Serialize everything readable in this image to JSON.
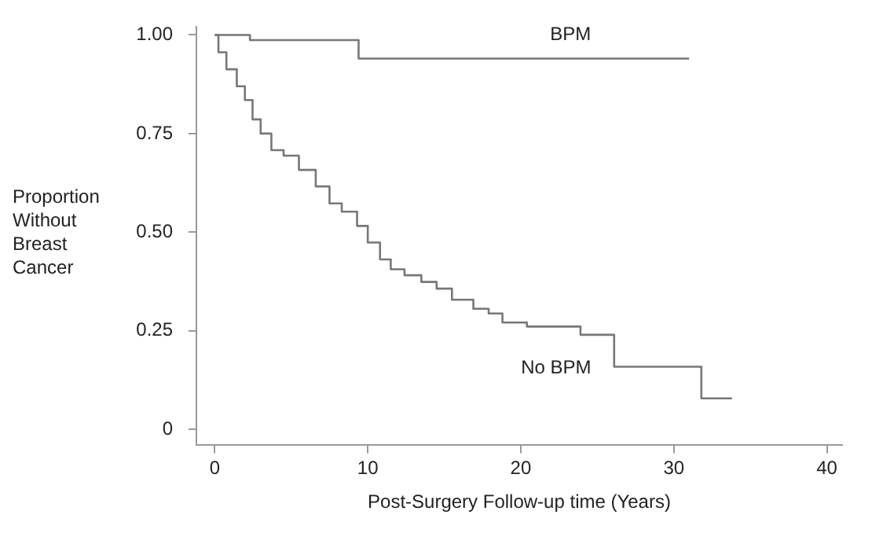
{
  "chart_data": {
    "type": "step",
    "xlabel": "Post-Surgery Follow-up time (Years)",
    "ylabel": "Proportion Without Breast Cancer",
    "xlim": [
      -1.2,
      41
    ],
    "xticks": [
      0,
      10,
      20,
      30,
      40
    ],
    "ylim": [
      -0.04,
      1.02
    ],
    "yticks": [
      {
        "value": 0,
        "label": "0"
      },
      {
        "value": 0.25,
        "label": "0.25"
      },
      {
        "value": 0.5,
        "label": "0.50"
      },
      {
        "value": 0.75,
        "label": "0.75"
      },
      {
        "value": 1,
        "label": "1.00"
      }
    ],
    "grid": false,
    "legend": false,
    "series": [
      {
        "name": "BPM",
        "color": "#777777",
        "x": [
          0,
          2.3,
          9.4,
          31
        ],
        "values": [
          1,
          0.987,
          0.94,
          0.94
        ]
      },
      {
        "name": "No BPM",
        "color": "#777777",
        "x": [
          0,
          0.24,
          0.76,
          1.44,
          1.97,
          2.47,
          3.0,
          3.7,
          4.5,
          5.5,
          6.6,
          7.5,
          8.3,
          9.3,
          10.0,
          10.8,
          11.5,
          12.4,
          13.5,
          14.5,
          15.5,
          16.9,
          17.9,
          18.8,
          20.4,
          23.9,
          26.1,
          31.8,
          33.8
        ],
        "values": [
          1,
          0.956,
          0.913,
          0.87,
          0.835,
          0.786,
          0.75,
          0.708,
          0.694,
          0.658,
          0.616,
          0.573,
          0.552,
          0.516,
          0.474,
          0.431,
          0.406,
          0.391,
          0.374,
          0.357,
          0.329,
          0.306,
          0.294,
          0.271,
          0.261,
          0.24,
          0.159,
          0.079,
          0.079
        ]
      }
    ]
  }
}
